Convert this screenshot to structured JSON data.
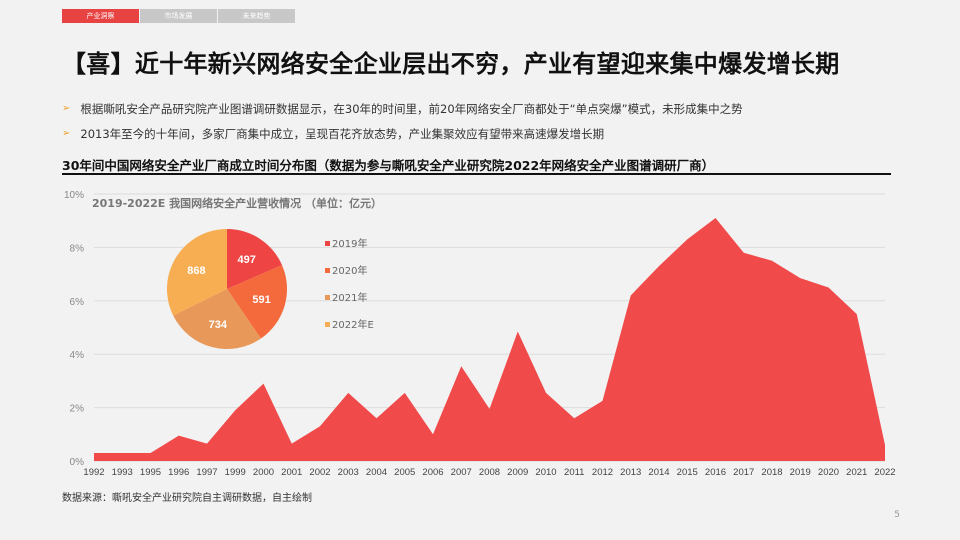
{
  "tabs": [
    "产业洞察",
    "市场发展",
    "未来趋势"
  ],
  "title": "【喜】近十年新兴网络安全企业层出不穷，产业有望迎来集中爆发增长期",
  "bullets": [
    "根据嘶吼安全产品研究院产业图谱调研数据显示，在30年的时间里，前20年网络安全厂商都处于“单点突爆”模式，未形成集中之势",
    "2013年至今的十年间，多家厂商集中成立，呈现百花齐放态势，产业集聚效应有望带来高速爆发增长期"
  ],
  "source": "数据来源：嘶吼安全产业研究院自主调研数据，自主绘制",
  "page_number": "5",
  "chart_data": [
    {
      "type": "area",
      "title": "30年间中国网络安全产业厂商成立时间分布图（数据为参与嘶吼安全产业研究院2022年网络安全产业图谱调研厂商）",
      "categories": [
        "1992",
        "1993",
        "1995",
        "1996",
        "1997",
        "1999",
        "2000",
        "2001",
        "2002",
        "2003",
        "2004",
        "2005",
        "2006",
        "2007",
        "2008",
        "2009",
        "2010",
        "2011",
        "2012",
        "2013",
        "2014",
        "2015",
        "2016",
        "2017",
        "2018",
        "2019",
        "2020",
        "2021",
        "2022"
      ],
      "values": [
        0.3,
        0.3,
        0.3,
        0.95,
        0.65,
        1.9,
        2.9,
        0.65,
        1.3,
        2.55,
        1.6,
        2.55,
        1.0,
        3.55,
        1.95,
        4.85,
        2.55,
        1.6,
        2.25,
        6.2,
        7.3,
        8.3,
        9.1,
        7.8,
        7.5,
        6.85,
        6.5,
        5.5,
        0.6
      ],
      "yticks": [
        "0%",
        "2%",
        "4%",
        "6%",
        "8%",
        "10%"
      ],
      "ylim": [
        0,
        10
      ],
      "color": "#f04a4a",
      "grid": true
    },
    {
      "type": "pie",
      "title": "2019-2022E 我国网络安全产业营收情况 （单位：亿元）",
      "labels": [
        "2019年",
        "2020年",
        "2021年",
        "2022年E"
      ],
      "values": [
        497,
        591,
        734,
        868
      ],
      "colors": [
        "#ee4444",
        "#f56a3c",
        "#e8995a",
        "#f7ae52"
      ],
      "legend": "right"
    }
  ]
}
